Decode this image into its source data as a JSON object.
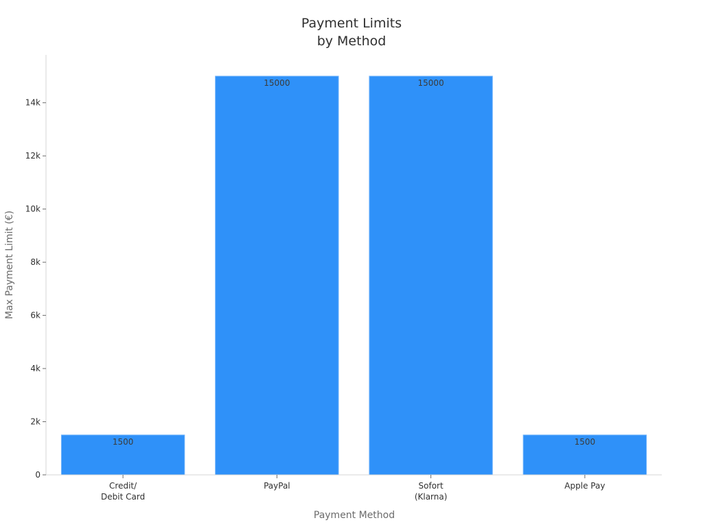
{
  "chart_data": {
    "type": "bar",
    "title_lines": [
      "Payment Limits",
      "by Method"
    ],
    "xlabel": "Payment Method",
    "ylabel": "Max Payment Limit (€)",
    "categories": [
      [
        "Credit/",
        "Debit Card"
      ],
      [
        "PayPal"
      ],
      [
        "Sofort",
        "(Klarna)"
      ],
      [
        "Apple Pay"
      ]
    ],
    "values": [
      1500,
      15000,
      15000,
      1500
    ],
    "data_labels": [
      "1500",
      "15000",
      "15000",
      "1500"
    ],
    "y_ticks": [
      0,
      2000,
      4000,
      6000,
      8000,
      10000,
      12000,
      14000
    ],
    "y_tick_labels": [
      "0",
      "2k",
      "4k",
      "6k",
      "8k",
      "10k",
      "12k",
      "14k"
    ],
    "ylim": [
      0,
      15800
    ],
    "grid": false,
    "legend": "none",
    "bar_color": "#2f91f9"
  }
}
